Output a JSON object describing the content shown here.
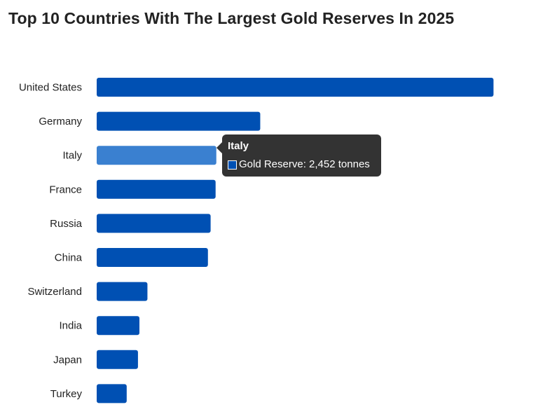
{
  "chart_data": {
    "type": "bar",
    "orientation": "horizontal",
    "title": "Top 10 Countries With The Largest Gold Reserves In 2025",
    "categories": [
      "United States",
      "Germany",
      "Italy",
      "France",
      "Russia",
      "China",
      "Switzerland",
      "India",
      "Japan",
      "Turkey"
    ],
    "series": [
      {
        "name": "Gold Reserve",
        "unit": "tonnes",
        "values": [
          8133,
          3352,
          2452,
          2437,
          2335,
          2280,
          1040,
          876,
          846,
          615
        ]
      }
    ],
    "xlim": [
      0,
      8300
    ],
    "grid": false,
    "xlabel": "",
    "ylabel": "",
    "colors": {
      "bar": "#0050b3",
      "highlight": "#3a80d0"
    },
    "highlighted_category": "Italy",
    "tooltip": {
      "title": "Italy",
      "label": "Gold Reserve: 2,452 tonnes"
    }
  }
}
